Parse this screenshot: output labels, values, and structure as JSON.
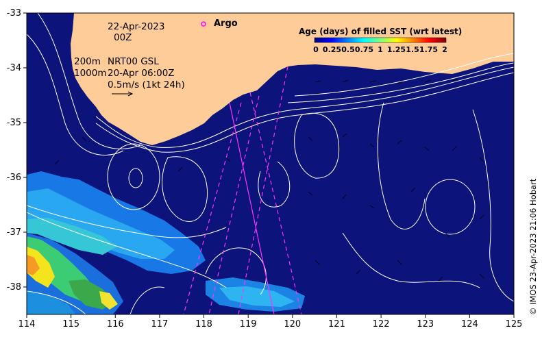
{
  "map": {
    "lon_ticks": [
      "114",
      "115",
      "116",
      "117",
      "118",
      "119",
      "120",
      "121",
      "122",
      "123",
      "124",
      "125"
    ],
    "lat_ticks": [
      "-33",
      "-34",
      "-35",
      "-36",
      "-37",
      "-38"
    ],
    "lon_range": [
      114,
      125
    ],
    "lat_range": [
      -38.5,
      -33
    ]
  },
  "annotations": {
    "date_line1": "22-Apr-2023",
    "date_line2": "00Z",
    "contour_line1": "200m",
    "contour_line2": "1000m",
    "product_line1": "NRT00 GSL",
    "product_line2": "20-Apr 06:00Z",
    "scale_text": "0.5m/s (1kt 24h)"
  },
  "argo": {
    "label": "Argo",
    "color": "#ff00ff"
  },
  "legend": {
    "title": "Age (days) of filled SST (wrt latest)",
    "ticks": [
      "0",
      "0.25",
      "0.5",
      "0.75",
      "1",
      "1.25",
      "1.5",
      "1.75",
      "2"
    ],
    "colors": [
      "#00007f",
      "#0000ff",
      "#007fff",
      "#00ffff",
      "#7fff7f",
      "#ffff00",
      "#ff7f00",
      "#ff0000",
      "#7f0000"
    ]
  },
  "colors": {
    "ocean": "#0c137a",
    "land": "#fdcc99",
    "contour": "#ffffff",
    "track": "#ff33ff"
  },
  "credit": "© IMOS 23-Apr-2023 21:06 Hobart"
}
